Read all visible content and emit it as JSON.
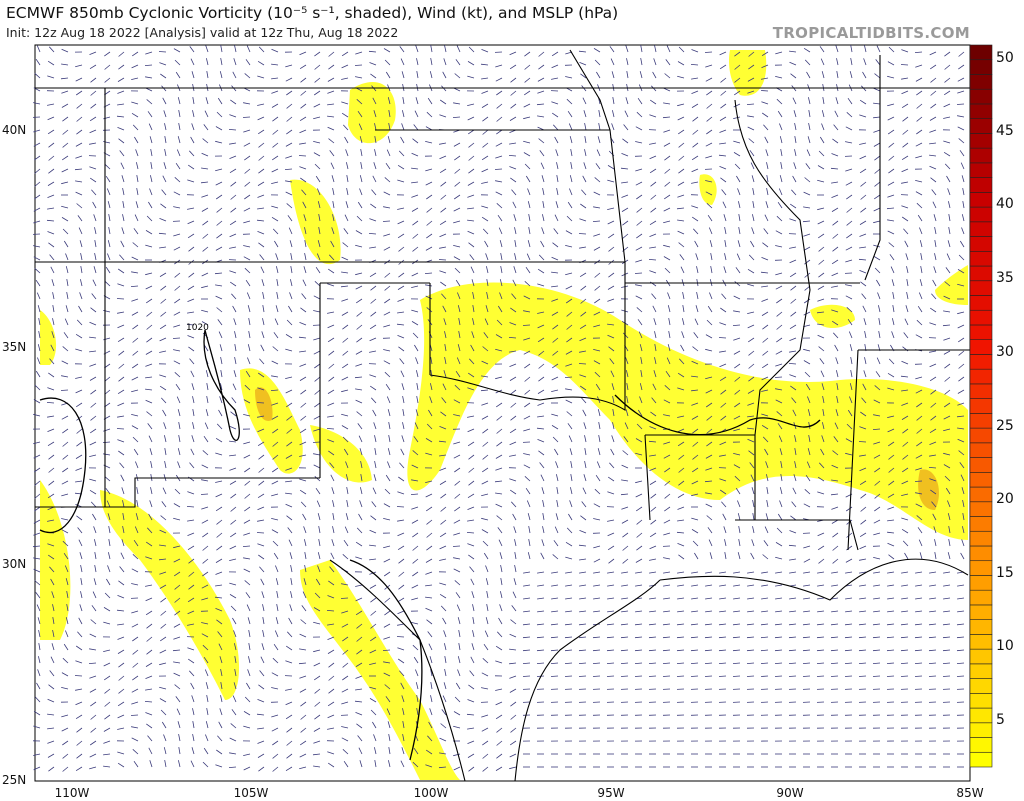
{
  "header": {
    "title": "ECMWF 850mb Cyclonic Vorticity (10⁻⁵ s⁻¹, shaded), Wind (kt), and MSLP (hPa)",
    "subtitle": "Init: 12z Aug 18 2022   [Analysis]   valid at 12z Thu, Aug 18 2022",
    "brand": "TROPICALTIDBITS.COM"
  },
  "map": {
    "latitude_labels": [
      "40N",
      "35N",
      "30N",
      "25N"
    ],
    "longitude_labels": [
      "110W",
      "105W",
      "100W",
      "95W",
      "90W",
      "85W"
    ],
    "isobar_label": "1020",
    "colors": {
      "vorticity_low": "#ffff00",
      "vorticity_mid": "#ff9900",
      "vorticity_high": "#ee0000",
      "vorticity_max": "#6a0000",
      "wind_barb": "#3a3a7a",
      "borders": "#000000",
      "counties": "#b0b0b0"
    }
  },
  "colorbar": {
    "labels": [
      "50",
      "45",
      "40",
      "35",
      "30",
      "25",
      "20",
      "15",
      "10",
      "5"
    ],
    "range": [
      2,
      51
    ]
  }
}
